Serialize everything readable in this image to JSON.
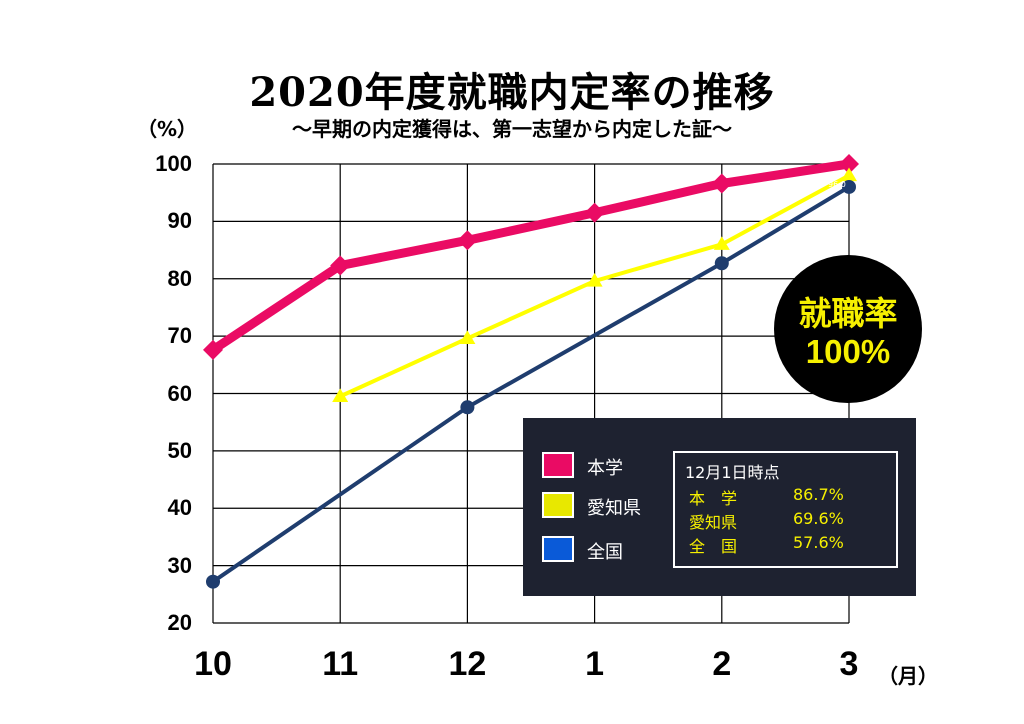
{
  "chart_data": {
    "type": "line",
    "title": "2020年度就職内定率の推移",
    "subtitle": "～早期の内定獲得は、第一志望から内定した証～",
    "ylabel": "（%）",
    "xlabel": "（月）",
    "categories": [
      "10",
      "11",
      "12",
      "1",
      "2",
      "3"
    ],
    "ylim": [
      20,
      100
    ],
    "yticks": [
      "20",
      "30",
      "40",
      "50",
      "60",
      "70",
      "80",
      "90",
      "100"
    ],
    "grid": true,
    "legend_position": "bottom-right",
    "series": [
      {
        "name": "本学",
        "color": "#ea0b64",
        "marker": "diamond",
        "values": [
          67.6,
          82.3,
          86.7,
          91.5,
          96.6,
          100
        ]
      },
      {
        "name": "愛知県",
        "color": "#ffff00",
        "marker": "triangle",
        "values": [
          null,
          59.5,
          69.6,
          79.6,
          86.0,
          98.0
        ]
      },
      {
        "name": "全国",
        "color": "#1f3d6e",
        "marker": "circle",
        "values": [
          27.2,
          null,
          57.6,
          null,
          82.7,
          96.0
        ]
      }
    ],
    "annotations": {
      "end_label": "96.0",
      "badge_line1": "就職率",
      "badge_line2": "100%"
    },
    "legend_colors": {
      "本学": "#ea0b64",
      "愛知県": "#e8e800",
      "全国": "#0a5ad8"
    },
    "info_box": {
      "title": "12月1日時点",
      "rows": [
        {
          "name": "本　学",
          "value": "86.7%"
        },
        {
          "name": "愛知県",
          "value": "69.6%"
        },
        {
          "name": "全　国",
          "value": "57.6%"
        }
      ]
    }
  }
}
